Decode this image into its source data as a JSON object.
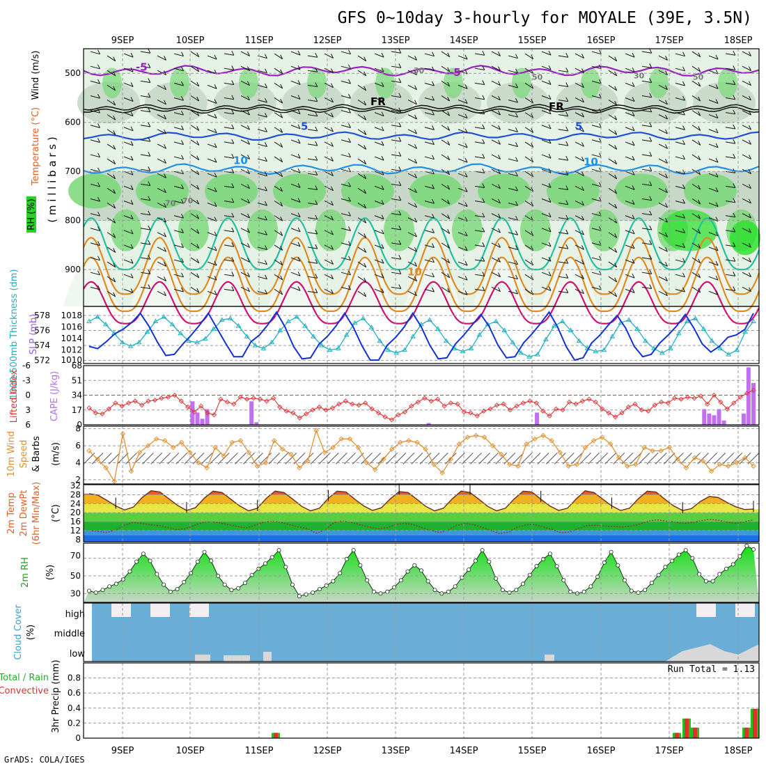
{
  "title": "GFS 0~10day 3-hourly for MOYALE (39E, 3.5N)",
  "credit": "GrADS: COLA/IGES",
  "run_total_text": "Run Total = 1.13",
  "day_labels": [
    "9SEP",
    "10SEP",
    "11SEP",
    "12SEP",
    "13SEP",
    "14SEP",
    "15SEP",
    "16SEP",
    "17SEP",
    "18SEP"
  ],
  "colors": {
    "rh_light": "#e6f2e6",
    "rh_mid": "#c8d8c8",
    "rh_green": "#78d878",
    "rh_bright": "#28e028",
    "temp_violet": "#9a1fc0",
    "temp_blue5": "#1f4fd8",
    "temp_blue10": "#1e90e8",
    "temp_teal": "#20c0a0",
    "temp_orange": "#e08a20",
    "temp_magenta": "#d01070",
    "slp": "#1030d0",
    "thickness": "#20b0c0",
    "cape": "#c070f0",
    "li": "#e03030",
    "wind10": "#e09030",
    "rh2": "#20c020",
    "cloud": "#6aaed8",
    "cloud_clear": "#f2eef4",
    "cloud_low": "#d8d8d8",
    "precip_total": "#20c020",
    "precip_conv": "#e03030"
  },
  "panels": {
    "upper": {
      "ylabel_wind": "Wind (m/s)",
      "ylabel_temp": "Temperature (°C)",
      "ylabel_rh": "RH (%)",
      "ylabel_p": "( m i l l i b a r s )",
      "p_ticks": [
        "500",
        "600",
        "700",
        "800",
        "900"
      ],
      "contour_labels": [
        "-5",
        "-5",
        "FR",
        "FR",
        "5",
        "5",
        "10",
        "10",
        "10",
        "30",
        "30",
        "50",
        "50",
        "70",
        "70"
      ]
    },
    "slp": {
      "ylabel_thick": "1000-500mb Thickness (dm)",
      "ylabel_slp": "SLP (mb)",
      "thick_ticks": [
        "578",
        "576",
        "574",
        "572"
      ],
      "slp_ticks": [
        "1018",
        "1016",
        "1014",
        "1012",
        "1010"
      ]
    },
    "cape": {
      "ylabel_li": "Lifted Index",
      "ylabel_cape": "CAPE (J/kg)",
      "li_ticks": [
        "-6",
        "-3",
        "0",
        "3",
        "6"
      ],
      "cape_ticks": [
        "68",
        "51",
        "34",
        "17",
        "0"
      ]
    },
    "wind10": {
      "ylabel_1": "10m Wind",
      "ylabel_2": "Speed",
      "ylabel_3": "& Barbs",
      "unit": "(m/s)",
      "ticks": [
        "8",
        "6",
        "4",
        "2"
      ]
    },
    "temp2m": {
      "ylabel_1": "2m Temp",
      "ylabel_2": "2m DewPt",
      "ylabel_3": "(6hr Min/Max)",
      "unit": "(°C)",
      "ticks": [
        "32",
        "28",
        "24",
        "20",
        "16",
        "12",
        "8"
      ]
    },
    "rh2m": {
      "ylabel": "2m RH",
      "unit": "(%)",
      "ticks": [
        "70",
        "50",
        "30"
      ]
    },
    "cloud": {
      "ylabel_1": "Cloud Cover",
      "ylabel_2": "(%)",
      "level_labels": [
        "high",
        "middle",
        "low"
      ]
    },
    "precip": {
      "ylabel_1": "3hr Precip (mm)",
      "ylabel_2": "Total / Rain",
      "ylabel_3": "Convective",
      "ticks": [
        "0.8",
        "0.6",
        "0.4",
        "0.2",
        "0"
      ]
    }
  },
  "chart_data": [
    {
      "type": "line",
      "name": "1000-500mb Thickness (dm)",
      "x_unit": "3-hourly steps from 9SEP 00Z",
      "values": [
        577.2,
        577.8,
        576.8,
        575.6,
        574.4,
        573.9,
        574.4,
        575.8,
        577.2,
        577.8,
        576.8,
        575.6,
        574.6,
        574.4,
        574.9,
        576.2,
        577.4,
        577.6,
        576.6,
        575.2,
        574.0,
        573.6,
        574.4,
        576.0,
        577.2,
        577.8,
        576.6,
        575.2,
        574.0,
        573.4,
        573.6,
        575.4,
        577.0,
        577.6,
        576.4,
        574.6,
        573.4,
        573.0,
        573.4,
        575.2,
        576.8,
        577.4,
        576.2,
        574.6,
        573.6,
        573.2,
        573.6,
        575.4,
        576.8,
        577.2,
        576.0,
        574.4,
        573.0,
        572.5,
        572.8,
        574.8,
        576.6,
        577.2,
        576.0,
        574.6,
        573.6,
        573.2,
        573.4,
        575.2,
        577.0,
        577.4,
        576.2,
        574.6,
        573.6,
        573.0,
        573.6,
        575.6,
        577.2,
        577.6,
        576.2,
        574.6,
        573.6,
        572.8,
        573.4,
        575.8,
        577.2
      ]
    },
    {
      "type": "line",
      "name": "SLP (mb)",
      "values": [
        1012.6,
        1012.2,
        1013.4,
        1014.8,
        1015.6,
        1016.8,
        1018.4,
        1016.2,
        1013.4,
        1011.0,
        1011.2,
        1013.0,
        1014.6,
        1016.4,
        1018.4,
        1015.8,
        1013.2,
        1010.8,
        1010.8,
        1013.4,
        1014.6,
        1016.4,
        1018.6,
        1016.0,
        1012.6,
        1010.4,
        1010.6,
        1013.0,
        1014.4,
        1016.2,
        1018.4,
        1016.0,
        1012.8,
        1010.2,
        1010.2,
        1012.8,
        1014.2,
        1016.0,
        1018.4,
        1016.0,
        1012.8,
        1010.4,
        1010.6,
        1013.0,
        1014.6,
        1016.4,
        1018.2,
        1016.0,
        1012.8,
        1010.6,
        1010.8,
        1013.2,
        1014.8,
        1016.6,
        1018.6,
        1016.0,
        1012.6,
        1010.2,
        1010.6,
        1013.2,
        1014.6,
        1016.4,
        1018.0,
        1015.8,
        1012.6,
        1010.8,
        1011.2,
        1013.2,
        1014.6,
        1016.2,
        1018.2,
        1015.8,
        1013.0,
        1011.6,
        1012.6,
        1014.2,
        1014.6,
        1015.6,
        1018.4
      ]
    },
    {
      "type": "bar",
      "name": "CAPE (J/kg)",
      "values": [
        0,
        0,
        0,
        0,
        0,
        0,
        0,
        0,
        0,
        0,
        0,
        0,
        0,
        0,
        0,
        0,
        0,
        0,
        0,
        0,
        0,
        27,
        14,
        7,
        18,
        0,
        0,
        0,
        0,
        0,
        0,
        0,
        0,
        27,
        3,
        0,
        0,
        0,
        0,
        0,
        0,
        0,
        0,
        0,
        0,
        0,
        0,
        0,
        0,
        0,
        0,
        0,
        0,
        0,
        0,
        0,
        0,
        0,
        0,
        0,
        0,
        0,
        0,
        0,
        0,
        0,
        0,
        0,
        0,
        2,
        0,
        0,
        0,
        0,
        0,
        0,
        0,
        0,
        0,
        0,
        0,
        0,
        0,
        0,
        0,
        0,
        0,
        0,
        0,
        0,
        0,
        14,
        0,
        0,
        0,
        0,
        0,
        0,
        0,
        0,
        0,
        0,
        0,
        0,
        0,
        0,
        0,
        0,
        0,
        0,
        0,
        0,
        0,
        0,
        0,
        0,
        0,
        0,
        0,
        0,
        0,
        0,
        0,
        0,
        0,
        18,
        13,
        11,
        18,
        5,
        0,
        0,
        0,
        13,
        66,
        48
      ]
    },
    {
      "type": "line",
      "name": "Lifted Index",
      "values": [
        2.6,
        3.6,
        3.8,
        2.8,
        1.6,
        2.2,
        1.6,
        1.2,
        2.0,
        1.2,
        1.0,
        0.6,
        0.4,
        0.0,
        1.2,
        2.4,
        3.4,
        2.2,
        3.6,
        4.0,
        0.8,
        1.4,
        1.8,
        0.4,
        0.8,
        0.6,
        0.8,
        1.2,
        0.6,
        2.4,
        3.2,
        3.6,
        4.6,
        3.8,
        3.0,
        2.4,
        3.0,
        2.6,
        1.8,
        1.2,
        1.8,
        2.0,
        1.6,
        2.8,
        3.6,
        4.4,
        5.0,
        4.0,
        3.4,
        2.2,
        1.4,
        0.6,
        1.2,
        0.8,
        2.2,
        1.6,
        1.8,
        3.4,
        3.6,
        4.2,
        3.2,
        2.8,
        2.0,
        1.8,
        3.0,
        2.2,
        1.6,
        1.2,
        1.6,
        3.2,
        4.2,
        2.8,
        3.0,
        1.4,
        1.8,
        1.2,
        0.8,
        1.4,
        2.8,
        3.6,
        4.4,
        3.6,
        2.4,
        1.8,
        3.0,
        3.2,
        2.0,
        1.4,
        1.6,
        0.6,
        0.8,
        0.4,
        0.6,
        0.2,
        1.8,
        0.0,
        1.4,
        2.8,
        1.6,
        0.4,
        -0.4,
        -1.0
      ]
    },
    {
      "type": "line",
      "name": "10m Wind Speed (m/s)",
      "values": [
        5.4,
        4.4,
        3.4,
        1.8,
        7.4,
        3.0,
        5.2,
        6.0,
        6.8,
        6.6,
        5.8,
        6.4,
        5.2,
        4.0,
        3.4,
        5.8,
        4.8,
        6.4,
        6.6,
        5.2,
        3.6,
        4.0,
        6.6,
        5.6,
        5.0,
        3.4,
        4.2,
        7.8,
        5.2,
        5.8,
        6.8,
        6.8,
        5.8,
        4.0,
        3.2,
        4.4,
        5.6,
        6.4,
        6.6,
        6.4,
        5.6,
        3.8,
        2.8,
        4.4,
        6.2,
        7.0,
        7.2,
        7.0,
        6.0,
        5.0,
        3.8,
        3.6,
        6.2,
        6.8,
        7.2,
        6.6,
        5.2,
        3.6,
        3.8,
        5.8,
        6.6,
        7.0,
        6.2,
        4.6,
        3.6,
        3.8,
        5.8,
        5.4,
        5.4,
        5.8,
        4.4,
        3.4,
        4.6,
        4.2,
        3.0,
        3.8,
        3.6,
        4.0,
        4.6,
        3.6
      ]
    },
    {
      "type": "area",
      "name": "2m Temp (°C)",
      "values": [
        28.5,
        27.8,
        25.5,
        23.0,
        21.2,
        22.5,
        26.8,
        29.8,
        29.2,
        26.2,
        23.2,
        21.0,
        22.2,
        26.5,
        29.6,
        29.0,
        26.0,
        23.0,
        20.8,
        22.0,
        26.4,
        29.6,
        29.0,
        26.0,
        22.8,
        20.8,
        22.0,
        26.4,
        29.6,
        29.2,
        26.0,
        23.0,
        21.0,
        22.2,
        26.2,
        29.4,
        29.0,
        26.0,
        22.8,
        20.8,
        22.0,
        26.2,
        29.6,
        29.0,
        26.0,
        22.8,
        20.8,
        22.0,
        26.2,
        29.6,
        29.2,
        26.0,
        23.0,
        21.0,
        22.0,
        26.2,
        29.8,
        29.0,
        26.0,
        23.0,
        21.0,
        22.0,
        26.2,
        29.6,
        29.2,
        26.0,
        23.0,
        21.0,
        21.8,
        25.0,
        27.2,
        26.8,
        24.6,
        22.6,
        21.4,
        21.6
      ]
    },
    {
      "type": "line",
      "name": "2m DewPt (°C)",
      "values": [
        12.0,
        11.6,
        11.2,
        12.2,
        14.4,
        15.6,
        15.2,
        14.6,
        14.2,
        13.4,
        12.4,
        12.8,
        14.2,
        15.6,
        16.0,
        15.4,
        14.6,
        13.8,
        13.2,
        14.4,
        15.8,
        16.2,
        15.6,
        14.6,
        13.6,
        12.8,
        10.8,
        12.2,
        15.6,
        16.2,
        15.6,
        14.6,
        13.6,
        12.8,
        13.2,
        14.6,
        15.2,
        14.8,
        13.4,
        12.2,
        11.2,
        12.0,
        14.2,
        15.2,
        14.6,
        13.4,
        12.0,
        10.6,
        11.4,
        13.6,
        14.6,
        14.6,
        13.6,
        12.4,
        11.0,
        11.4,
        13.0,
        14.2,
        14.4,
        14.0,
        13.8,
        13.6,
        14.0,
        15.0,
        16.2,
        16.8,
        16.2,
        15.8,
        15.2,
        15.6,
        16.4,
        17.0,
        16.6,
        15.8,
        15.2,
        16.0,
        16.8
      ]
    },
    {
      "type": "area",
      "name": "2m RH (%)",
      "values": [
        33,
        31,
        34,
        38,
        41,
        46,
        55,
        66,
        75,
        67,
        52,
        40,
        32,
        35,
        43,
        53,
        66,
        77,
        67,
        50,
        40,
        34,
        36,
        42,
        51,
        58,
        64,
        71,
        79,
        60,
        40,
        27,
        29,
        31,
        35,
        39,
        44,
        53,
        69,
        79,
        62,
        45,
        32,
        30,
        32,
        37,
        45,
        55,
        62,
        56,
        44,
        34,
        30,
        32,
        38,
        48,
        57,
        67,
        79,
        66,
        47,
        34,
        31,
        34,
        41,
        51,
        61,
        69,
        75,
        61,
        45,
        32,
        30,
        32,
        38,
        49,
        65,
        77,
        62,
        45,
        33,
        31,
        34,
        42,
        51,
        60,
        67,
        74,
        79,
        70,
        52,
        44,
        44,
        52,
        58,
        63,
        72,
        84,
        80
      ]
    },
    {
      "type": "bar",
      "name": "Cloud Cover (%)",
      "series": [
        {
          "name": "high",
          "values": [
            60,
            100,
            100,
            100,
            100,
            100,
            100,
            100,
            100,
            100,
            60,
            100,
            100,
            100,
            100,
            100,
            90,
            100,
            100,
            100,
            100,
            100,
            100,
            100,
            100,
            100,
            100,
            100,
            100,
            100,
            100,
            100,
            100,
            100,
            100,
            100,
            100,
            100,
            60,
            100,
            60,
            100,
            100,
            100,
            100,
            100,
            100,
            100,
            100,
            100,
            100,
            100,
            100,
            100,
            100,
            100,
            90,
            100,
            100,
            100,
            100,
            100,
            100,
            100,
            100,
            100,
            100,
            100,
            100,
            100,
            100,
            90,
            100,
            70,
            100,
            100
          ]
        },
        {
          "name": "low",
          "values": [
            0,
            0,
            0,
            0,
            0,
            0,
            0,
            0,
            0,
            0,
            0,
            0,
            0,
            0,
            0,
            45,
            45,
            45,
            0,
            0,
            0,
            0,
            0,
            0,
            0,
            0,
            0,
            0,
            0,
            0,
            0,
            0,
            0,
            0,
            0,
            0,
            0,
            0,
            0,
            0,
            0,
            0,
            0,
            0,
            0,
            0,
            0,
            0,
            0,
            0,
            0,
            0,
            0,
            0,
            0,
            0,
            0,
            0,
            0,
            0,
            0,
            0,
            0,
            0,
            0,
            0,
            0,
            0,
            0,
            0,
            45,
            0,
            0,
            0,
            0,
            0,
            0
          ]
        }
      ]
    },
    {
      "type": "bar",
      "name": "3hr Precip (mm)",
      "x_labels": [
        "11SEP 06Z",
        "17SEP 00Z",
        "17SEP 03Z",
        "17SEP 06Z",
        "18SEP 00Z",
        "18SEP 03Z"
      ],
      "series": [
        {
          "name": "Total / Rain",
          "values": [
            0.07,
            0.07,
            0.26,
            0.14,
            0.14,
            0.39
          ]
        },
        {
          "name": "Convective",
          "values": [
            0.07,
            0.07,
            0.26,
            0.14,
            0.14,
            0.39
          ]
        }
      ],
      "ylim": [
        0,
        1.0
      ]
    }
  ]
}
